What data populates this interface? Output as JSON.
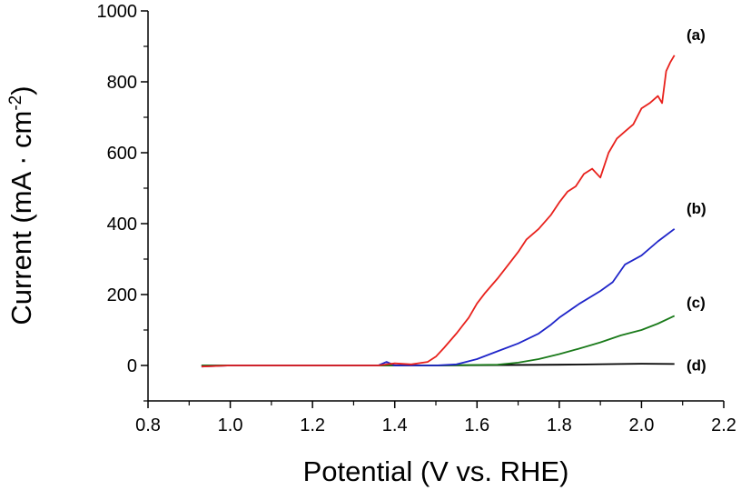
{
  "chart_data": {
    "type": "line",
    "title": "",
    "xlabel": "Potential (V vs. RHE)",
    "ylabel_main": "Current (mA · cm",
    "ylabel_sup": "-2",
    "ylabel_close": ")",
    "xlim": [
      0.8,
      2.2
    ],
    "ylim": [
      -100,
      1000
    ],
    "xticks": [
      0.8,
      1.0,
      1.2,
      1.4,
      1.6,
      1.8,
      2.0,
      2.2
    ],
    "xtick_labels": [
      "0.8",
      "1.0",
      "1.2",
      "1.4",
      "1.6",
      "1.8",
      "2.0",
      "2.2"
    ],
    "yticks": [
      0,
      200,
      400,
      600,
      800,
      1000
    ],
    "ytick_labels": [
      "0",
      "200",
      "400",
      "600",
      "800",
      "1000"
    ],
    "grid": false,
    "legend": "none",
    "series": [
      {
        "name": "(a)",
        "color": "#e8211c",
        "x": [
          0.93,
          1.0,
          1.1,
          1.2,
          1.3,
          1.36,
          1.4,
          1.44,
          1.48,
          1.5,
          1.52,
          1.55,
          1.58,
          1.6,
          1.62,
          1.65,
          1.68,
          1.7,
          1.72,
          1.75,
          1.78,
          1.8,
          1.82,
          1.84,
          1.86,
          1.88,
          1.9,
          1.92,
          1.94,
          1.96,
          1.98,
          2.0,
          2.02,
          2.04,
          2.05,
          2.06,
          2.07,
          2.08
        ],
        "y": [
          -3,
          0,
          0,
          0,
          0,
          0,
          6,
          3,
          10,
          25,
          50,
          90,
          135,
          175,
          205,
          245,
          290,
          320,
          355,
          385,
          425,
          460,
          490,
          505,
          540,
          555,
          530,
          600,
          640,
          660,
          680,
          725,
          740,
          760,
          740,
          830,
          855,
          875
        ]
      },
      {
        "name": "(b)",
        "color": "#1f25c9",
        "x": [
          0.93,
          1.0,
          1.2,
          1.36,
          1.38,
          1.4,
          1.5,
          1.55,
          1.6,
          1.65,
          1.7,
          1.75,
          1.78,
          1.8,
          1.85,
          1.9,
          1.93,
          1.96,
          2.0,
          2.04,
          2.08
        ],
        "y": [
          -3,
          0,
          0,
          0,
          10,
          0,
          0,
          3,
          18,
          40,
          62,
          90,
          115,
          135,
          175,
          210,
          235,
          285,
          310,
          350,
          385
        ]
      },
      {
        "name": "(c)",
        "color": "#1a7a1a",
        "x": [
          0.93,
          1.2,
          1.5,
          1.65,
          1.7,
          1.75,
          1.8,
          1.85,
          1.9,
          1.95,
          2.0,
          2.04,
          2.08
        ],
        "y": [
          0,
          0,
          0,
          2,
          8,
          18,
          32,
          48,
          65,
          85,
          100,
          118,
          140
        ]
      },
      {
        "name": "(d)",
        "color": "#000000",
        "x": [
          0.93,
          1.2,
          1.5,
          1.8,
          1.95,
          2.0,
          2.08
        ],
        "y": [
          0,
          0,
          0,
          2,
          4,
          5,
          4
        ]
      }
    ]
  }
}
